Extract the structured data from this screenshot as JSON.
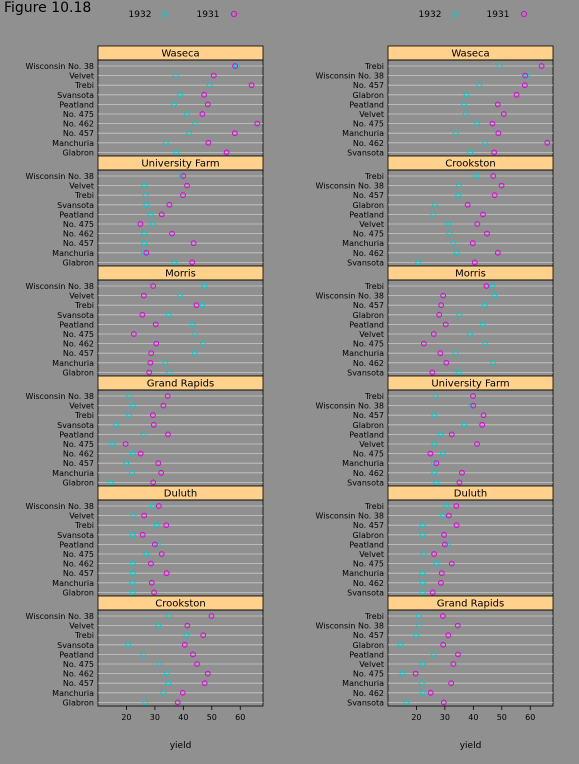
{
  "figure_title": "Figure 10.18",
  "colors": {
    "y1932": "#00cccc",
    "y1931": "#e000e0",
    "strip": "#ffd18c",
    "background": "#909090"
  },
  "chart_data": [
    {
      "type": "dotplot",
      "column": "left",
      "xlabel": "yield",
      "xlim": [
        10,
        68
      ],
      "xticks": [
        20,
        30,
        40,
        50,
        60
      ],
      "legend": [
        "1932",
        "1931"
      ],
      "legend_placement": "top",
      "grid": true,
      "varieties": [
        "Wisconsin No. 38",
        "Velvet",
        "Trebi",
        "Svansota",
        "Peatland",
        "No. 475",
        "No. 462",
        "No. 457",
        "Manchuria",
        "Glabron"
      ],
      "panels": [
        {
          "site": "Waseca",
          "y1932": [
            58.8,
            37.3,
            49.2,
            38.9,
            36.7,
            41.3,
            44.2,
            42.1,
            33.8,
            37.6
          ],
          "y1931": [
            58.2,
            50.7,
            64.0,
            47.3,
            48.6,
            46.7,
            66.0,
            58.1,
            48.8,
            55.2
          ]
        },
        {
          "site": "University Farm",
          "y1932": [
            39.3,
            26.3,
            26.7,
            27.0,
            28.5,
            29.3,
            26.3,
            26.3,
            26.1,
            36.8
          ],
          "y1931": [
            40.0,
            41.3,
            39.9,
            35.1,
            32.4,
            24.9,
            36.0,
            43.6,
            27.0,
            43.1
          ]
        },
        {
          "site": "Morris",
          "y1932": [
            47.4,
            38.8,
            46.7,
            34.8,
            43.3,
            44.2,
            47.0,
            44.0,
            33.7,
            35.1
          ],
          "y1931": [
            29.4,
            26.1,
            44.6,
            25.6,
            30.3,
            22.6,
            30.5,
            28.7,
            28.4,
            28.0
          ]
        },
        {
          "site": "Grand Rapids",
          "y1932": [
            21.0,
            22.2,
            20.9,
            16.4,
            26.0,
            15.1,
            22.2,
            19.9,
            21.9,
            14.4
          ],
          "y1931": [
            34.5,
            33.0,
            29.3,
            29.6,
            34.6,
            19.7,
            25.0,
            31.2,
            32.2,
            29.4
          ]
        },
        {
          "site": "Duluth",
          "y1932": [
            29.3,
            22.5,
            30.6,
            22.2,
            31.0,
            27.0,
            22.2,
            22.2,
            22.1,
            22.2
          ],
          "y1931": [
            31.4,
            26.2,
            34.0,
            25.7,
            30.0,
            32.4,
            28.6,
            34.1,
            28.9,
            29.7
          ]
        },
        {
          "site": "Crookston",
          "y1932": [
            35.0,
            31.2,
            41.1,
            20.6,
            25.9,
            31.6,
            34.2,
            34.7,
            33.0,
            26.6
          ],
          "y1931": [
            49.9,
            41.4,
            47.0,
            40.5,
            43.4,
            44.8,
            48.6,
            47.5,
            39.8,
            38.0
          ]
        }
      ]
    },
    {
      "type": "dotplot",
      "column": "right",
      "xlabel": "yield",
      "xlim": [
        10,
        68
      ],
      "xticks": [
        20,
        30,
        40,
        50,
        60
      ],
      "legend": [
        "1932",
        "1931"
      ],
      "legend_placement": "top",
      "grid": true,
      "panels": [
        {
          "site": "Waseca",
          "varieties": [
            "Trebi",
            "Wisconsin No. 38",
            "No. 457",
            "Glabron",
            "Peatland",
            "Velvet",
            "No. 475",
            "Manchuria",
            "No. 462",
            "Svansota"
          ],
          "y1932": [
            49.2,
            58.8,
            42.1,
            37.6,
            36.7,
            37.3,
            41.3,
            33.8,
            44.2,
            38.9
          ],
          "y1931": [
            64.0,
            58.2,
            58.1,
            55.2,
            48.6,
            50.7,
            46.7,
            48.8,
            66.0,
            47.3
          ]
        },
        {
          "site": "Crookston",
          "varieties": [
            "Trebi",
            "Wisconsin No. 38",
            "No. 457",
            "Glabron",
            "Peatland",
            "Velvet",
            "No. 475",
            "Manchuria",
            "No. 462",
            "Svansota"
          ],
          "y1932": [
            41.1,
            35.0,
            34.7,
            26.6,
            25.9,
            31.2,
            31.6,
            33.0,
            34.2,
            20.6
          ],
          "y1931": [
            47.0,
            49.9,
            47.5,
            38.0,
            43.4,
            41.4,
            44.8,
            39.8,
            48.6,
            40.5
          ]
        },
        {
          "site": "Morris",
          "varieties": [
            "Trebi",
            "Wisconsin No. 38",
            "No. 457",
            "Glabron",
            "Peatland",
            "Velvet",
            "No. 475",
            "Manchuria",
            "No. 462",
            "Svansota"
          ],
          "y1932": [
            46.7,
            47.4,
            44.0,
            35.1,
            43.3,
            38.8,
            44.2,
            33.7,
            47.0,
            34.8
          ],
          "y1931": [
            44.6,
            29.4,
            28.7,
            28.0,
            30.3,
            26.1,
            22.6,
            28.4,
            30.5,
            25.6
          ]
        },
        {
          "site": "University Farm",
          "varieties": [
            "Trebi",
            "Wisconsin No. 38",
            "No. 457",
            "Glabron",
            "Peatland",
            "Velvet",
            "No. 475",
            "Manchuria",
            "No. 462",
            "Svansota"
          ],
          "y1932": [
            26.7,
            39.3,
            26.3,
            36.8,
            28.5,
            26.3,
            29.3,
            26.1,
            26.3,
            27.0
          ],
          "y1931": [
            39.9,
            40.0,
            43.6,
            43.1,
            32.4,
            41.3,
            24.9,
            27.0,
            36.0,
            35.1
          ]
        },
        {
          "site": "Duluth",
          "varieties": [
            "Trebi",
            "Wisconsin No. 38",
            "No. 457",
            "Glabron",
            "Peatland",
            "Velvet",
            "No. 475",
            "Manchuria",
            "No. 462",
            "Svansota"
          ],
          "y1932": [
            30.6,
            29.3,
            22.2,
            22.2,
            31.0,
            22.5,
            27.0,
            22.1,
            22.2,
            22.2
          ],
          "y1931": [
            34.0,
            31.4,
            34.1,
            29.7,
            30.0,
            26.2,
            32.4,
            28.9,
            28.6,
            25.7
          ]
        },
        {
          "site": "Grand Rapids",
          "varieties": [
            "Trebi",
            "Wisconsin No. 38",
            "No. 457",
            "Glabron",
            "Peatland",
            "Velvet",
            "No. 475",
            "Manchuria",
            "No. 462",
            "Svansota"
          ],
          "y1932": [
            20.9,
            21.0,
            19.9,
            14.4,
            26.0,
            22.2,
            15.1,
            21.9,
            22.2,
            16.4
          ],
          "y1931": [
            29.3,
            34.5,
            31.2,
            29.4,
            34.6,
            33.0,
            19.7,
            32.2,
            25.0,
            29.6
          ]
        }
      ]
    }
  ]
}
